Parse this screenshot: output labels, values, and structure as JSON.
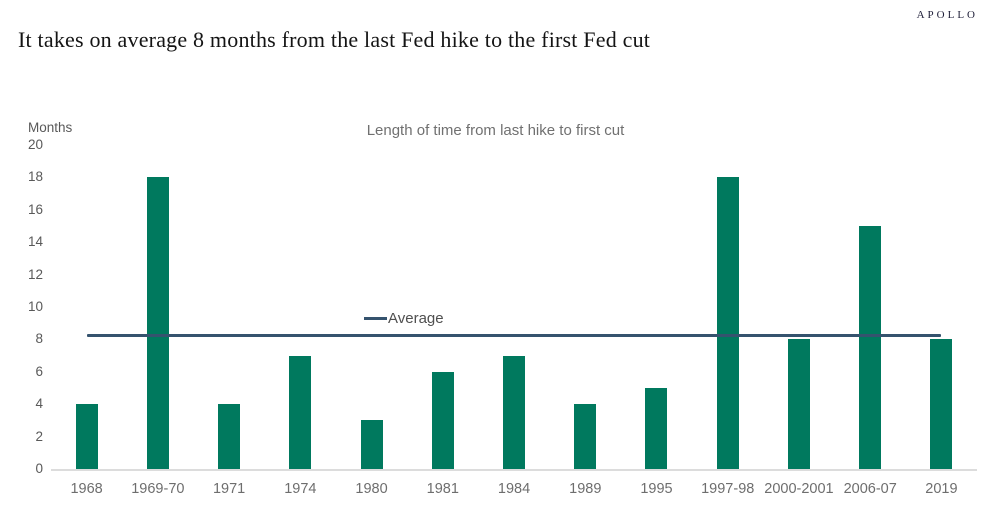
{
  "brand": {
    "logo": "APOLLO"
  },
  "header": {
    "title": "It takes on average 8 months from the last Fed hike to the first Fed cut"
  },
  "chart_data": {
    "type": "bar",
    "title": "Length of time from last hike to first cut",
    "ylabel": "Months",
    "xlabel": "",
    "categories": [
      "1968",
      "1969-70",
      "1971",
      "1974",
      "1980",
      "1981",
      "1984",
      "1989",
      "1995",
      "1997-98",
      "2000-2001",
      "2006-07",
      "2019"
    ],
    "values": [
      4,
      18,
      4,
      7,
      3,
      6,
      7,
      4,
      5,
      18,
      8,
      15,
      8
    ],
    "average": 8.23,
    "legend": [
      {
        "label": "Average",
        "type": "line"
      }
    ],
    "ylim": [
      0,
      20
    ],
    "yticks": [
      0,
      2,
      4,
      6,
      8,
      10,
      12,
      14,
      16,
      18,
      20
    ],
    "grid": false,
    "legend_position": "inside-left-of-center, at average level",
    "bar_color": "#00795E",
    "average_line_color": "#35536E",
    "axis_text_color": "#595959",
    "baseline_color": "#dcdcdc"
  }
}
